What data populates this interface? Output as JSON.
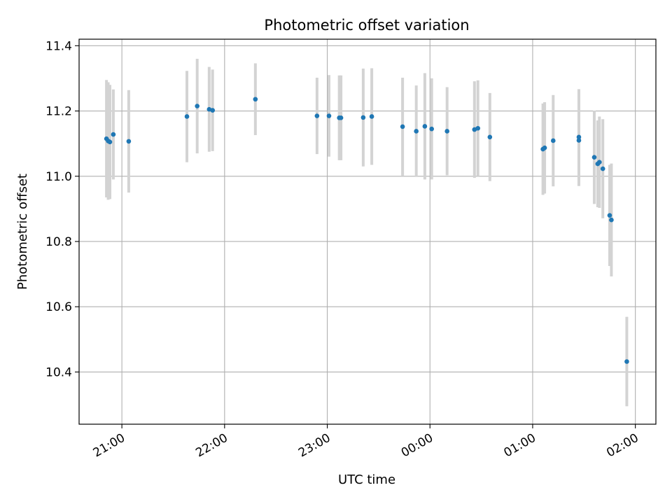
{
  "chart_data": {
    "type": "scatter",
    "title": "Photometric offset variation",
    "xlabel": "UTC time",
    "ylabel": "Photometric offset",
    "x_axis": "time",
    "xlim": [
      "20:35",
      "02:12"
    ],
    "ylim": [
      10.24,
      11.42
    ],
    "x_ticks": [
      "21:00",
      "22:00",
      "23:00",
      "00:00",
      "01:00",
      "02:00"
    ],
    "y_ticks": [
      10.4,
      10.6,
      10.8,
      11.0,
      11.2,
      11.4
    ],
    "y_tick_labels": [
      "10.4",
      "10.6",
      "10.8",
      "11.0",
      "11.2",
      "11.4"
    ],
    "grid": true,
    "colors": {
      "point": "#1f77b4",
      "errorbar": "#d3d3d3",
      "grid": "#b0b0b0"
    },
    "points": [
      {
        "x": "20:51",
        "y": 11.115,
        "err": 0.18
      },
      {
        "x": "20:52",
        "y": 11.108,
        "err": 0.18
      },
      {
        "x": "20:53",
        "y": 11.105,
        "err": 0.175
      },
      {
        "x": "20:55",
        "y": 11.128,
        "err": 0.138
      },
      {
        "x": "21:04",
        "y": 11.107,
        "err": 0.157
      },
      {
        "x": "21:38",
        "y": 11.183,
        "err": 0.14
      },
      {
        "x": "21:44",
        "y": 11.215,
        "err": 0.145
      },
      {
        "x": "21:51",
        "y": 11.205,
        "err": 0.13
      },
      {
        "x": "21:53",
        "y": 11.202,
        "err": 0.125
      },
      {
        "x": "22:18",
        "y": 11.236,
        "err": 0.11
      },
      {
        "x": "22:54",
        "y": 11.185,
        "err": 0.117
      },
      {
        "x": "23:01",
        "y": 11.185,
        "err": 0.125
      },
      {
        "x": "23:07",
        "y": 11.179,
        "err": 0.13
      },
      {
        "x": "23:08",
        "y": 11.179,
        "err": 0.13
      },
      {
        "x": "23:21",
        "y": 11.18,
        "err": 0.15
      },
      {
        "x": "23:26",
        "y": 11.183,
        "err": 0.148
      },
      {
        "x": "23:44",
        "y": 11.152,
        "err": 0.15
      },
      {
        "x": "23:52",
        "y": 11.138,
        "err": 0.14
      },
      {
        "x": "23:57",
        "y": 11.153,
        "err": 0.163
      },
      {
        "x": "00:01",
        "y": 11.145,
        "err": 0.155
      },
      {
        "x": "00:10",
        "y": 11.138,
        "err": 0.135
      },
      {
        "x": "00:26",
        "y": 11.143,
        "err": 0.148
      },
      {
        "x": "00:28",
        "y": 11.147,
        "err": 0.147
      },
      {
        "x": "00:35",
        "y": 11.12,
        "err": 0.135
      },
      {
        "x": "01:06",
        "y": 11.083,
        "err": 0.14
      },
      {
        "x": "01:07",
        "y": 11.087,
        "err": 0.14
      },
      {
        "x": "01:12",
        "y": 11.109,
        "err": 0.14
      },
      {
        "x": "01:27",
        "y": 11.11,
        "err": 0.14
      },
      {
        "x": "01:27",
        "y": 11.12,
        "err": 0.147
      },
      {
        "x": "01:36",
        "y": 11.058,
        "err": 0.143
      },
      {
        "x": "01:38",
        "y": 11.038,
        "err": 0.133
      },
      {
        "x": "01:39",
        "y": 11.043,
        "err": 0.14
      },
      {
        "x": "01:41",
        "y": 11.023,
        "err": 0.152
      },
      {
        "x": "01:45",
        "y": 10.88,
        "err": 0.155
      },
      {
        "x": "01:46",
        "y": 10.866,
        "err": 0.173
      },
      {
        "x": "01:55",
        "y": 10.432,
        "err": 0.137
      }
    ]
  }
}
